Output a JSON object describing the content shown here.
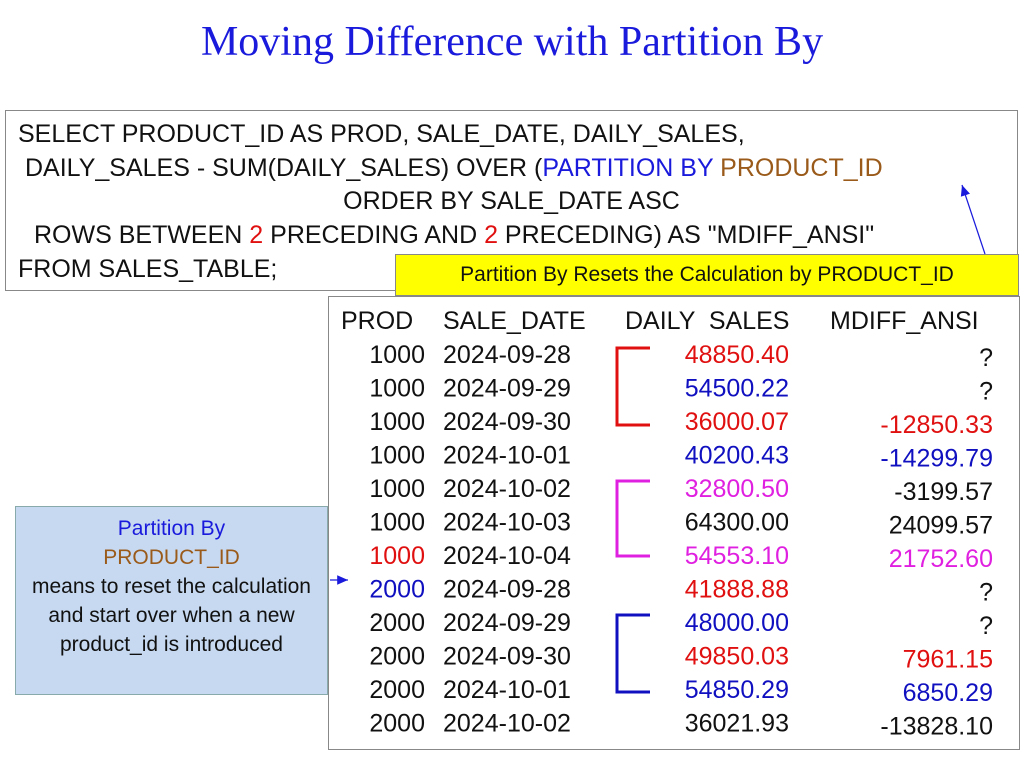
{
  "title": "Moving Difference with Partition By",
  "sql": {
    "lines": [
      [
        "SELECT PRODUCT_ID AS PROD, SALE_DATE, DAILY_SALES,"
      ],
      [
        "DAILY_SALES - SUM(DAILY_SALES) OVER (",
        "PARTITION BY ",
        "PRODUCT_ID"
      ],
      [
        "ORDER BY SALE_DATE ASC"
      ],
      [
        "ROWS BETWEEN ",
        "2",
        " PRECEDING AND ",
        "2",
        " PRECEDING) AS \"MDIFF_ANSI\""
      ],
      [
        "FROM SALES_TABLE;"
      ]
    ]
  },
  "callout": "Partition By Resets the Calculation by PRODUCT_ID",
  "note": {
    "title": "Partition By",
    "highlight": "PRODUCT_ID",
    "text": "means to reset the calculation and start over when a new product_id is introduced"
  },
  "table": {
    "columns": [
      "PROD",
      "SALE_DATE",
      "DAILY  SALES",
      "MDIFF_ANSI"
    ],
    "rows": [
      [
        "1000",
        "2024-09-28",
        "48850.40",
        "?"
      ],
      [
        "1000",
        "2024-09-29",
        "54500.22",
        "?"
      ],
      [
        "1000",
        "2024-09-30",
        "36000.07",
        "-12850.33"
      ],
      [
        "1000",
        "2024-10-01",
        "40200.43",
        "-14299.79"
      ],
      [
        "1000",
        "2024-10-02",
        "32800.50",
        "-3199.57"
      ],
      [
        "1000",
        "2024-10-03",
        "64300.00",
        "24099.57"
      ],
      [
        "1000",
        "2024-10-04",
        "54553.10",
        "21752.60"
      ],
      [
        "2000",
        "2024-09-28",
        "41888.88",
        "?"
      ],
      [
        "2000",
        "2024-09-29",
        "48000.00",
        "?"
      ],
      [
        "2000",
        "2024-09-30",
        "49850.03",
        "7961.15"
      ],
      [
        "2000",
        "2024-10-01",
        "54850.29",
        "6850.29"
      ],
      [
        "2000",
        "2024-10-02",
        "36021.93",
        "-13828.10"
      ]
    ]
  }
}
